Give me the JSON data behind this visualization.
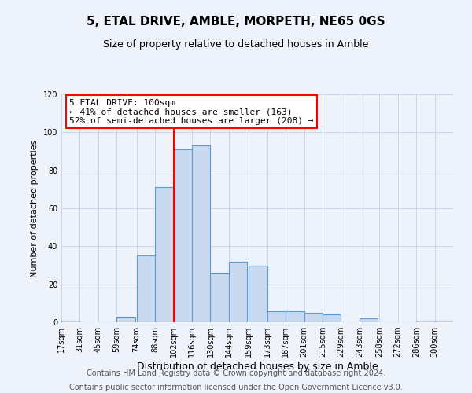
{
  "title": "5, ETAL DRIVE, AMBLE, MORPETH, NE65 0GS",
  "subtitle": "Size of property relative to detached houses in Amble",
  "xlabel": "Distribution of detached houses by size in Amble",
  "ylabel": "Number of detached properties",
  "footer_line1": "Contains HM Land Registry data © Crown copyright and database right 2024.",
  "footer_line2": "Contains public sector information licensed under the Open Government Licence v3.0.",
  "bin_labels": [
    "17sqm",
    "31sqm",
    "45sqm",
    "59sqm",
    "74sqm",
    "88sqm",
    "102sqm",
    "116sqm",
    "130sqm",
    "144sqm",
    "159sqm",
    "173sqm",
    "187sqm",
    "201sqm",
    "215sqm",
    "229sqm",
    "243sqm",
    "258sqm",
    "272sqm",
    "286sqm",
    "300sqm"
  ],
  "bar_values": [
    1,
    0,
    0,
    3,
    35,
    71,
    91,
    93,
    26,
    32,
    30,
    6,
    6,
    5,
    4,
    0,
    2,
    0,
    0,
    1,
    1
  ],
  "bar_color": "#c9d9f0",
  "bar_edge_color": "#5b9bd5",
  "vline_x": 102,
  "vline_color": "red",
  "ylim": [
    0,
    120
  ],
  "yticks": [
    0,
    20,
    40,
    60,
    80,
    100,
    120
  ],
  "annotation_title": "5 ETAL DRIVE: 100sqm",
  "annotation_line1": "← 41% of detached houses are smaller (163)",
  "annotation_line2": "52% of semi-detached houses are larger (208) →",
  "annotation_box_color": "white",
  "annotation_box_edge_color": "red",
  "bg_color": "#eef2fb",
  "grid_color": "#c8d8ec",
  "title_fontsize": 11,
  "subtitle_fontsize": 9,
  "ylabel_fontsize": 8,
  "xlabel_fontsize": 9,
  "tick_fontsize": 7,
  "footer_fontsize": 7,
  "annot_fontsize": 8
}
